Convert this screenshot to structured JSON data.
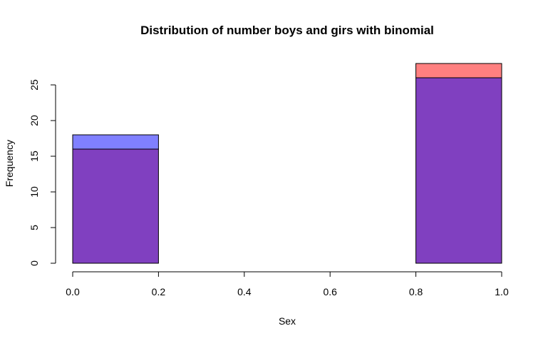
{
  "chart_data": {
    "type": "bar",
    "title": "Distribution of number boys and girs with binomial",
    "xlabel": "Sex",
    "ylabel": "Frequency",
    "xlim": [
      0,
      1
    ],
    "ylim": [
      0,
      28
    ],
    "x_ticks": [
      "0.0",
      "0.2",
      "0.4",
      "0.6",
      "0.8",
      "1.0"
    ],
    "y_ticks": [
      "0",
      "5",
      "10",
      "15",
      "20",
      "25"
    ],
    "grid": false,
    "bins": [
      [
        0,
        0.2
      ],
      [
        0.2,
        0.4
      ],
      [
        0.4,
        0.6
      ],
      [
        0.6,
        0.8
      ],
      [
        0.8,
        1.0
      ]
    ],
    "series": [
      {
        "values": [
          16,
          0,
          0,
          0,
          28
        ],
        "color": "#ff8080"
      },
      {
        "values": [
          18,
          0,
          0,
          0,
          26
        ],
        "color": "#8080ff"
      }
    ],
    "overlap_color": "#8040c0"
  }
}
